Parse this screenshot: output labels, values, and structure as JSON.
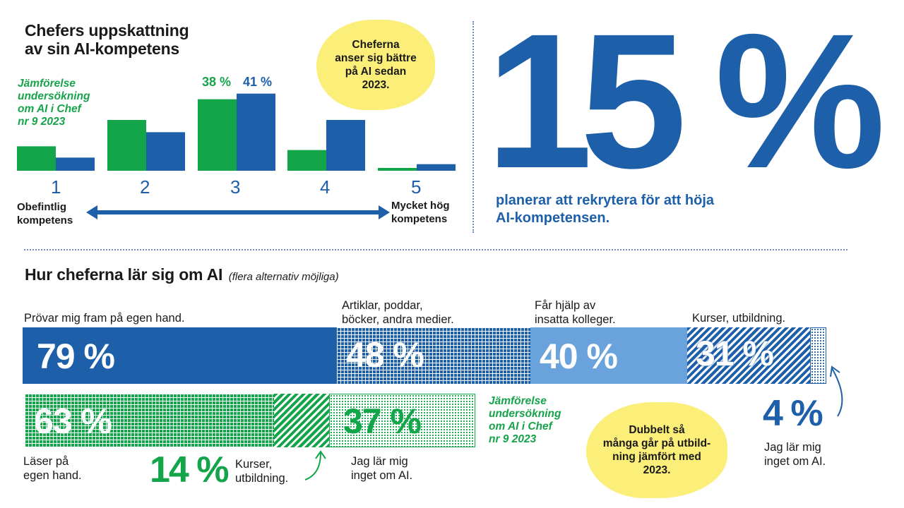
{
  "top_chart": {
    "title_line1": "Chefers uppskattning",
    "title_line2": "av sin AI-kompetens",
    "comparison_note": [
      "Jämförelse",
      "undersökning",
      "om AI i Chef",
      "nr 9 2023"
    ],
    "value_label_2023": "38 %",
    "value_label_2024": "41 %",
    "bubble": [
      "Cheferna",
      "anser sig bättre",
      "på AI sedan",
      "2023."
    ],
    "scale_left": [
      "Obefintlig",
      "kompetens"
    ],
    "scale_right": [
      "Mycket hög",
      "kompetens"
    ]
  },
  "big_stat": {
    "value": "15 %",
    "text_line1": "planerar att rekrytera för att höja",
    "text_line2": "AI-kompetensen."
  },
  "bottom": {
    "title": "Hur cheferna lär sig om AI",
    "subtitle": "(flera alternativ möjliga)",
    "labels": {
      "prövar": "Prövar mig fram på egen hand.",
      "artiklar_1": "Artiklar, poddar,",
      "artiklar_2": "böcker, andra medier.",
      "hjalp_1": "Får hjälp av",
      "hjalp_2": "insatta kolleger.",
      "kurser": "Kurser, utbildning.",
      "laser_1": "Läser på",
      "laser_2": "egen hand.",
      "kurser2_1": "Kurser,",
      "kurser2_2": "utbildning.",
      "ingenting_1": "Jag lär mig",
      "ingenting_2": "inget om AI.",
      "ingenting2_1": "Jag lär mig",
      "ingenting2_2": "inget om AI."
    },
    "pct": {
      "p79": "79 %",
      "p48": "48 %",
      "p40": "40 %",
      "p31": "31 %",
      "p4": "4 %",
      "p63": "63 %",
      "p14": "14 %",
      "p37": "37 %"
    },
    "comparison_note": [
      "Jämförelse",
      "undersökning",
      "om AI i Chef",
      "nr 9 2023"
    ],
    "bubble": [
      "Dubbelt så",
      "många går på utbild-",
      "ning jämfört med",
      "2023."
    ]
  },
  "colors": {
    "blue": "#1e5faa",
    "green": "#12a54a",
    "light_blue": "#6aa3dc",
    "yellow": "#fbee79"
  },
  "chart_data": [
    {
      "type": "bar",
      "title": "Chefers uppskattning av sin AI-kompetens",
      "categories": [
        "1",
        "2",
        "3",
        "4",
        "5"
      ],
      "series": [
        {
          "name": "Jämförelse undersökning om AI i Chef nr 9 2023",
          "values": [
            13,
            27,
            38,
            11,
            1.5
          ]
        },
        {
          "values": [
            7,
            20.5,
            41,
            27,
            3.5
          ]
        }
      ],
      "ylim": [
        0,
        42
      ],
      "xlabel": "",
      "ylabel": ""
    },
    {
      "type": "bar",
      "title": "Hur cheferna lär sig om AI",
      "categories": [
        "Prövar mig fram på egen hand.",
        "Artiklar, poddar, böcker, andra medier.",
        "Får hjälp av insatta kolleger.",
        "Kurser, utbildning.",
        "Jag lär mig inget om AI."
      ],
      "values": [
        79,
        48,
        40,
        31,
        4
      ]
    },
    {
      "type": "bar",
      "title": "Jämförelse undersökning om AI i Chef nr 9 2023",
      "categories": [
        "Läser på egen hand.",
        "Kurser, utbildning.",
        "Jag lär mig inget om AI."
      ],
      "values": [
        63,
        14,
        37
      ]
    }
  ]
}
